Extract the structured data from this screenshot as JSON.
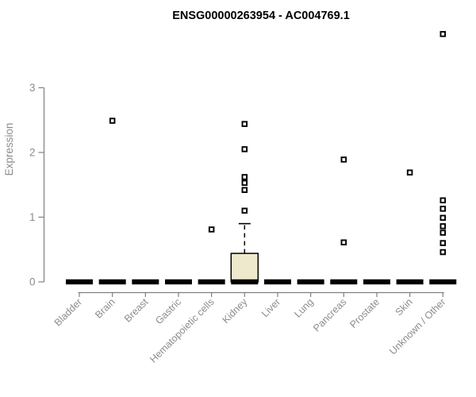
{
  "chart_data": {
    "type": "boxplot",
    "title": "ENSG00000263954 - AC004769.1",
    "ylabel": "Expression",
    "xlabel": "",
    "ylim": [
      0,
      3
    ],
    "yticks": [
      0,
      1,
      2,
      3
    ],
    "grid": false,
    "legend": "none",
    "categories": [
      "Bladder",
      "Brain",
      "Breast",
      "Gastric",
      "Hematopoietic cells",
      "Kidney",
      "Liver",
      "Lung",
      "Pancreas",
      "Prostate",
      "Skin",
      "Unknown / Other"
    ],
    "boxes": [
      {
        "category": "Bladder",
        "median": 0,
        "q1": 0,
        "q3": 0,
        "whisker_low": 0,
        "whisker_high": 0,
        "outliers": []
      },
      {
        "category": "Brain",
        "median": 0,
        "q1": 0,
        "q3": 0,
        "whisker_low": 0,
        "whisker_high": 0,
        "outliers": [
          2.49
        ]
      },
      {
        "category": "Breast",
        "median": 0,
        "q1": 0,
        "q3": 0,
        "whisker_low": 0,
        "whisker_high": 0,
        "outliers": []
      },
      {
        "category": "Gastric",
        "median": 0,
        "q1": 0,
        "q3": 0,
        "whisker_low": 0,
        "whisker_high": 0,
        "outliers": []
      },
      {
        "category": "Hematopoietic cells",
        "median": 0,
        "q1": 0,
        "q3": 0,
        "whisker_low": 0,
        "whisker_high": 0,
        "outliers": [
          0.81
        ]
      },
      {
        "category": "Kidney",
        "median": 0,
        "q1": 0,
        "q3": 0.44,
        "whisker_low": 0,
        "whisker_high": 0.9,
        "outliers": [
          2.44,
          2.05,
          1.62,
          1.53,
          1.42,
          1.1
        ]
      },
      {
        "category": "Liver",
        "median": 0,
        "q1": 0,
        "q3": 0,
        "whisker_low": 0,
        "whisker_high": 0,
        "outliers": []
      },
      {
        "category": "Lung",
        "median": 0,
        "q1": 0,
        "q3": 0,
        "whisker_low": 0,
        "whisker_high": 0,
        "outliers": []
      },
      {
        "category": "Pancreas",
        "median": 0,
        "q1": 0,
        "q3": 0,
        "whisker_low": 0,
        "whisker_high": 0,
        "outliers": [
          1.89,
          0.61
        ]
      },
      {
        "category": "Prostate",
        "median": 0,
        "q1": 0,
        "q3": 0,
        "whisker_low": 0,
        "whisker_high": 0,
        "outliers": []
      },
      {
        "category": "Skin",
        "median": 0,
        "q1": 0,
        "q3": 0,
        "whisker_low": 0,
        "whisker_high": 0,
        "outliers": [
          1.69
        ]
      },
      {
        "category": "Unknown / Other",
        "median": 0,
        "q1": 0,
        "q3": 0,
        "whisker_low": 0,
        "whisker_high": 0,
        "outliers": [
          3.83,
          1.26,
          1.13,
          0.99,
          0.86,
          0.76,
          0.6,
          0.46
        ]
      }
    ],
    "colors": {
      "box_fill": "#EEE8CD",
      "box_border": "#000000",
      "median": "#000000",
      "outlier": "#000000",
      "axis": "#7f7f7f",
      "tick_label": "#8c8c8c",
      "title": "#000000"
    }
  }
}
